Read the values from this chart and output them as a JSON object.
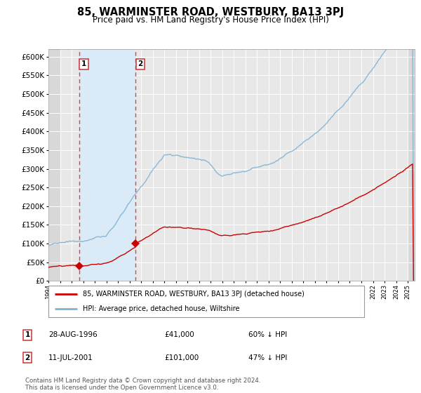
{
  "title": "85, WARMINSTER ROAD, WESTBURY, BA13 3PJ",
  "subtitle": "Price paid vs. HM Land Registry's House Price Index (HPI)",
  "title_fontsize": 10.5,
  "subtitle_fontsize": 8.5,
  "background_color": "#ffffff",
  "plot_bg_color": "#e8e8e8",
  "shaded_region_color": "#daeaf7",
  "hatch_color": "#cccccc",
  "grid_color": "#ffffff",
  "sale1_date_num": 1996.65,
  "sale1_price": 41000,
  "sale2_date_num": 2001.53,
  "sale2_price": 101000,
  "sale1_label": "1",
  "sale2_label": "2",
  "red_line_color": "#cc0000",
  "blue_line_color": "#7fb3d3",
  "dashed_line_color": "#dd4444",
  "marker_color": "#cc0000",
  "ylim": [
    0,
    620000
  ],
  "ytick_step": 50000,
  "xmin": 1994.0,
  "xmax": 2025.6,
  "legend_entry1": "85, WARMINSTER ROAD, WESTBURY, BA13 3PJ (detached house)",
  "legend_entry2": "HPI: Average price, detached house, Wiltshire",
  "table_row1": [
    "1",
    "28-AUG-1996",
    "£41,000",
    "60% ↓ HPI"
  ],
  "table_row2": [
    "2",
    "11-JUL-2001",
    "£101,000",
    "47% ↓ HPI"
  ],
  "footer": "Contains HM Land Registry data © Crown copyright and database right 2024.\nThis data is licensed under the Open Government Licence v3.0."
}
